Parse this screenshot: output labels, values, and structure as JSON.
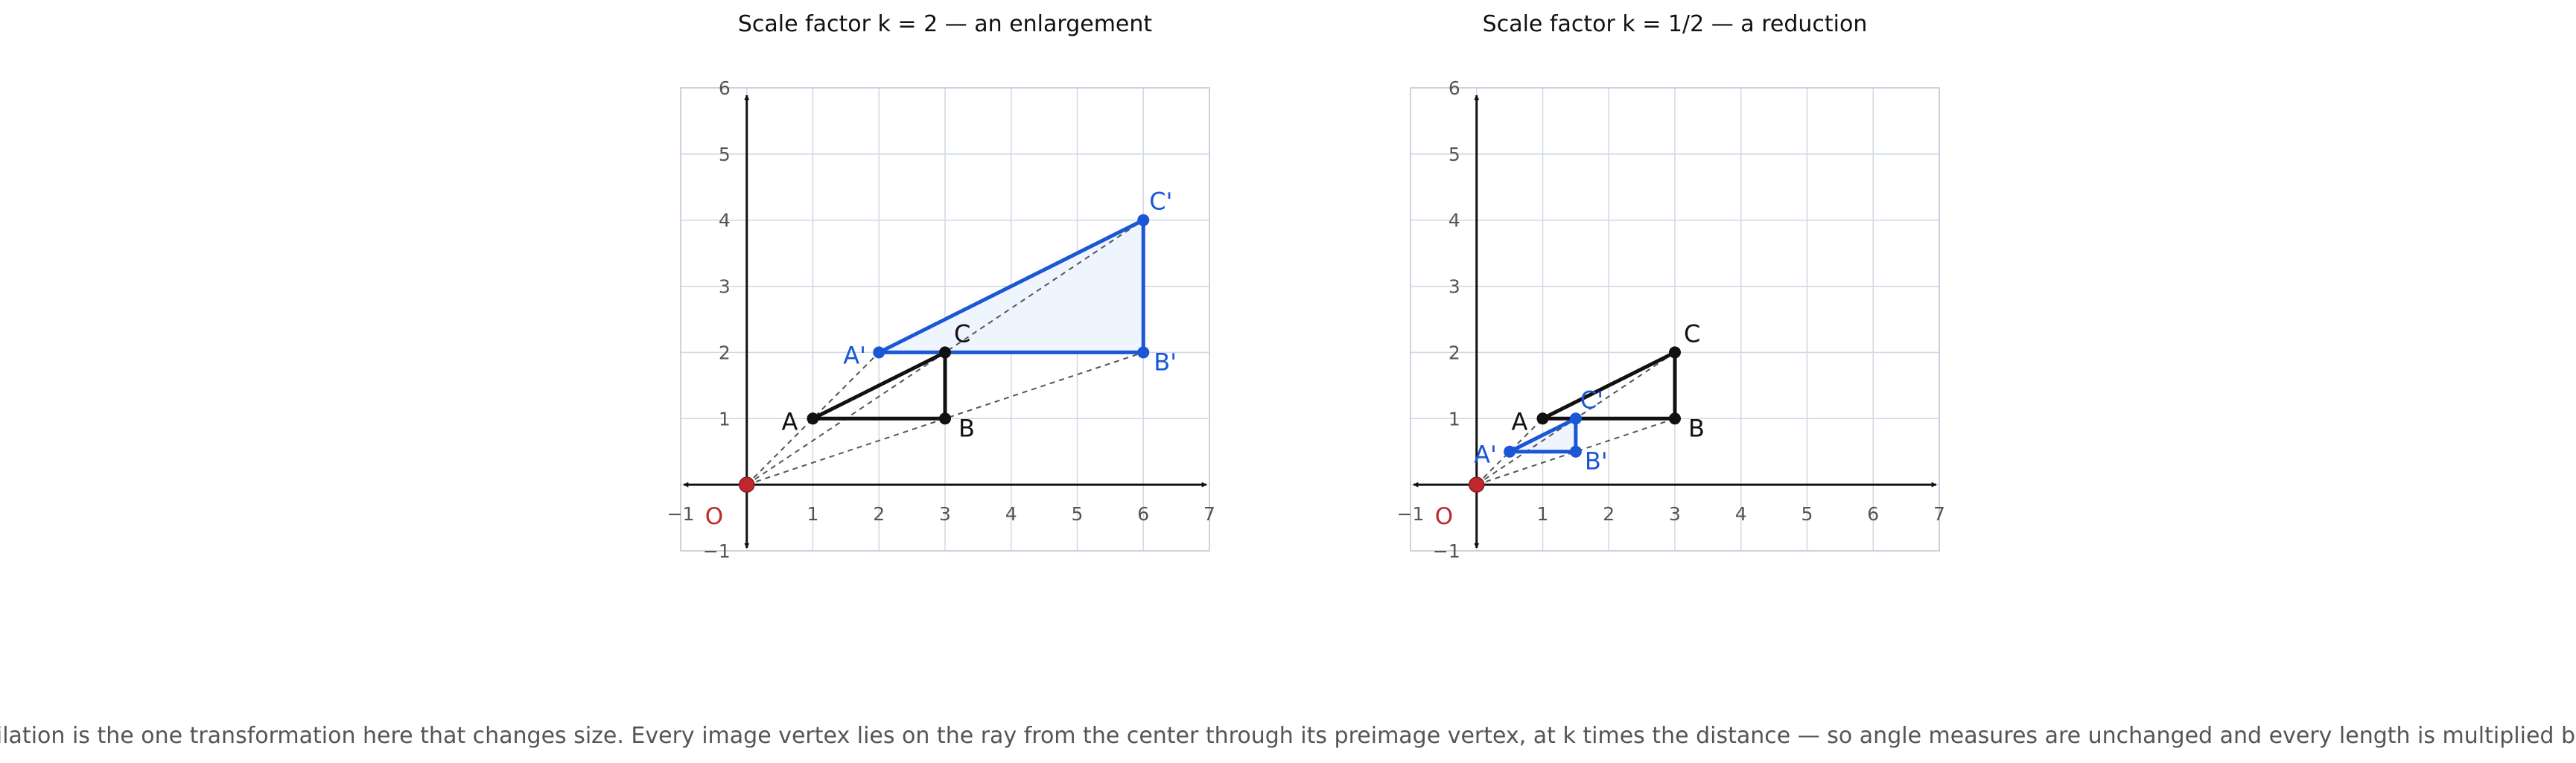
{
  "caption": "A dilation is the one transformation here that changes size. Every image vertex lies on the ray from the center through its preimage vertex, at k times the distance — so angle measures are unchanged and every length is multiplied by k.",
  "colors": {
    "preimage": "#111111",
    "image": "#1a56d6",
    "image_fill": "#eef5ff",
    "center": "#c0282d",
    "grid": "#cfd8e6",
    "frame": "#c5cdda",
    "ray": "#555555"
  },
  "chart_data": [
    {
      "type": "diagram",
      "title": "Scale factor k = 2 — an enlargement",
      "k": 2,
      "xlim": [
        -1,
        7
      ],
      "ylim": [
        -1,
        6
      ],
      "x_ticks": [
        "−1",
        "1",
        "2",
        "3",
        "4",
        "5",
        "6",
        "7"
      ],
      "y_ticks": [
        "−1",
        "1",
        "2",
        "3",
        "4",
        "5",
        "6"
      ],
      "center": {
        "label": "O",
        "x": 0,
        "y": 0
      },
      "preimage": [
        {
          "label": "A",
          "x": 1,
          "y": 1
        },
        {
          "label": "B",
          "x": 3,
          "y": 1
        },
        {
          "label": "C",
          "x": 3,
          "y": 2
        }
      ],
      "image": [
        {
          "label": "A'",
          "x": 2,
          "y": 2
        },
        {
          "label": "B'",
          "x": 6,
          "y": 2
        },
        {
          "label": "C'",
          "x": 6,
          "y": 4
        }
      ]
    },
    {
      "type": "diagram",
      "title": "Scale factor k = 1/2 — a reduction",
      "k": 0.5,
      "xlim": [
        -1,
        7
      ],
      "ylim": [
        -1,
        6
      ],
      "x_ticks": [
        "−1",
        "1",
        "2",
        "3",
        "4",
        "5",
        "6",
        "7"
      ],
      "y_ticks": [
        "−1",
        "1",
        "2",
        "3",
        "4",
        "5",
        "6"
      ],
      "center": {
        "label": "O",
        "x": 0,
        "y": 0
      },
      "preimage": [
        {
          "label": "A",
          "x": 1,
          "y": 1
        },
        {
          "label": "B",
          "x": 3,
          "y": 1
        },
        {
          "label": "C",
          "x": 3,
          "y": 2
        }
      ],
      "image": [
        {
          "label": "A'",
          "x": 0.5,
          "y": 0.5
        },
        {
          "label": "B'",
          "x": 1.5,
          "y": 0.5
        },
        {
          "label": "C'",
          "x": 1.5,
          "y": 1
        }
      ]
    }
  ]
}
